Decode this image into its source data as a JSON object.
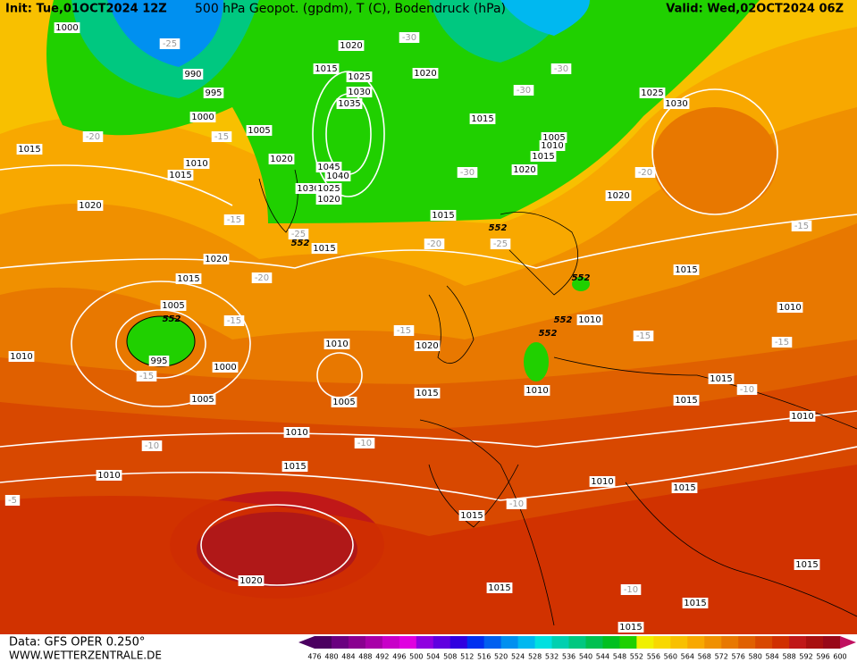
{
  "header": {
    "init": "Init: Tue,01OCT2024 12Z",
    "title": "500 hPa Geopot. (gpdm), T (C), Bodendruck (hPa)",
    "valid": "Valid: Wed,02OCT2024 06Z"
  },
  "footer": {
    "data_source": "Data: GFS OPER 0.250°",
    "website": "WWW.WETTERZENTRALE.DE"
  },
  "colorbar": {
    "labels": [
      476,
      480,
      484,
      488,
      492,
      496,
      500,
      504,
      508,
      512,
      516,
      520,
      524,
      528,
      532,
      536,
      540,
      544,
      548,
      552,
      556,
      560,
      564,
      568,
      572,
      576,
      580,
      584,
      588,
      592,
      596,
      600
    ],
    "colors": [
      "#4b0060",
      "#6a0080",
      "#8a0090",
      "#a800a8",
      "#c800c8",
      "#e000e0",
      "#9000e0",
      "#6000e0",
      "#3000e0",
      "#0030f0",
      "#0060f0",
      "#0090f0",
      "#00b8f0",
      "#00e0e0",
      "#00d0b0",
      "#00c880",
      "#00c050",
      "#00c020",
      "#20d000",
      "#f0f000",
      "#f8d800",
      "#f8c000",
      "#f8a800",
      "#f09000",
      "#e87800",
      "#e06000",
      "#d84800",
      "#d03000",
      "#c01818",
      "#a81010",
      "#980818",
      "#c01060"
    ]
  },
  "map": {
    "pressure_labels": [
      "1000",
      "1020",
      "990",
      "1015",
      "1025",
      "1020",
      "995",
      "1030",
      "1035",
      "1025",
      "1030",
      "1000",
      "1015",
      "1005",
      "1005",
      "1010",
      "1015",
      "1015",
      "1020",
      "1010",
      "1045",
      "1020",
      "1015",
      "1040",
      "1030",
      "1025",
      "1020",
      "1020",
      "1020",
      "1015",
      "1015",
      "1020",
      "1015",
      "1015",
      "1005",
      "1010",
      "1010",
      "1010",
      "1020",
      "1010",
      "995",
      "1000",
      "1015",
      "1010",
      "1015",
      "1005",
      "1005",
      "1015",
      "1010",
      "1010",
      "1015",
      "1010",
      "1010",
      "1015",
      "1015",
      "1015",
      "1020",
      "1015",
      "1015",
      "1015"
    ],
    "temperature_labels": [
      "-25",
      "-30",
      "-30",
      "-30",
      "-20",
      "-15",
      "-30",
      "-20",
      "-15",
      "-25",
      "-20",
      "-25",
      "-15",
      "-20",
      "-15",
      "-15",
      "-15",
      "-15",
      "-15",
      "-10",
      "-10",
      "-10",
      "-5",
      "-10",
      "-10"
    ],
    "height_labels": [
      "552",
      "552",
      "552",
      "552",
      "552",
      "552"
    ]
  }
}
